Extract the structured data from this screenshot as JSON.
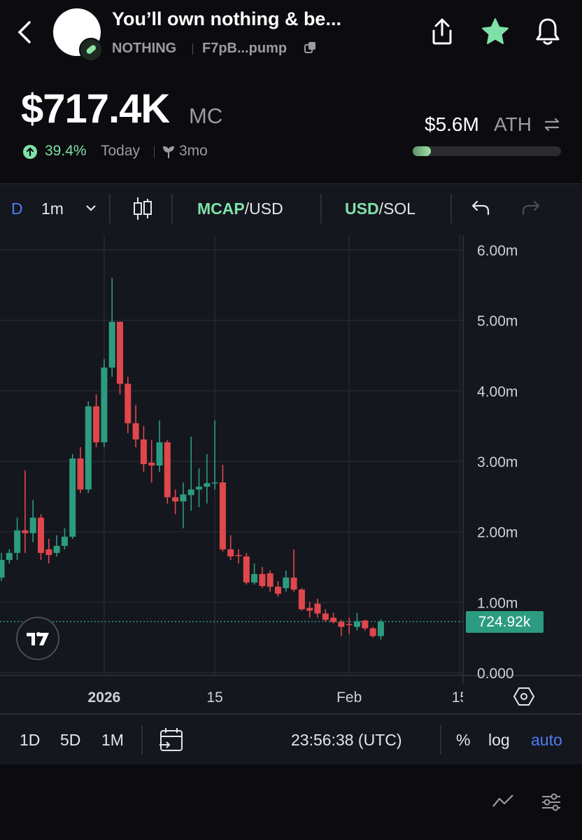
{
  "header": {
    "title": "You’ll own nothing & be...",
    "ticker": "NOTHING",
    "address": "F7pB...pump"
  },
  "stats": {
    "market_cap": "$717.4K",
    "market_cap_unit": "MC",
    "change": "39.4%",
    "change_period": "Today",
    "age": "3mo",
    "ath": "$5.6M",
    "ath_label": "ATH"
  },
  "toolbar": {
    "chart_style": "D",
    "interval": "1m",
    "pair_1_base": "MCAP",
    "pair_1_quote": "/USD",
    "pair_2_base": "USD",
    "pair_2_quote": "/SOL"
  },
  "chart_data": {
    "type": "candlestick",
    "up_color": "#2c9c80",
    "down_color": "#e0474c",
    "grid": true,
    "categories": [
      null,
      null,
      null,
      null,
      null,
      null,
      null,
      null,
      null,
      null,
      null,
      null,
      null,
      "2026",
      null,
      null,
      null,
      null,
      null,
      null,
      null,
      null,
      null,
      null,
      null,
      null,
      null,
      "15",
      null,
      null,
      null,
      null,
      null,
      null,
      null,
      null,
      null,
      null,
      null,
      null,
      null,
      null,
      null,
      null,
      "Feb",
      null,
      null,
      null,
      null,
      null,
      null,
      null,
      null,
      null,
      null,
      null,
      null,
      null,
      "15"
    ],
    "open": [
      1.35,
      1.6,
      1.7,
      2.02,
      1.98,
      2.2,
      1.75,
      1.7,
      1.8,
      1.93,
      3.04,
      2.6,
      3.78,
      3.27,
      4.33,
      4.98,
      4.1,
      3.54,
      3.31,
      2.98,
      2.94,
      3.27,
      2.49,
      2.43,
      2.52,
      2.6,
      2.64,
      2.69,
      2.7,
      1.75,
      1.67,
      1.65,
      1.28,
      1.4,
      1.41,
      1.22,
      1.2,
      1.35,
      1.18,
      0.92,
      0.98,
      0.84,
      0.78,
      0.72,
      0.69,
      0.65,
      0.74,
      0.63,
      0.52,
      null,
      null,
      null,
      null,
      null,
      null,
      null,
      null,
      null,
      null
    ],
    "high": [
      1.7,
      1.75,
      2.2,
      2.87,
      2.45,
      2.25,
      1.9,
      1.95,
      2.05,
      3.1,
      3.2,
      3.85,
      3.95,
      4.45,
      5.6,
      4.98,
      4.2,
      3.8,
      3.5,
      3.3,
      3.58,
      3.3,
      2.6,
      2.7,
      3.35,
      2.9,
      3.1,
      3.58,
      2.95,
      1.95,
      1.75,
      1.7,
      1.55,
      1.5,
      1.45,
      1.3,
      1.45,
      1.75,
      1.2,
      1.0,
      1.05,
      0.9,
      0.85,
      0.75,
      0.78,
      0.85,
      0.75,
      0.65,
      0.76,
      null,
      null,
      null,
      null,
      null,
      null,
      null,
      null,
      null,
      null
    ],
    "low": [
      1.3,
      1.55,
      1.6,
      1.7,
      1.85,
      1.6,
      1.55,
      1.65,
      1.75,
      1.9,
      2.55,
      2.55,
      3.2,
      3.2,
      4.2,
      3.95,
      3.4,
      3.2,
      2.85,
      2.7,
      2.85,
      2.4,
      2.25,
      2.05,
      2.3,
      2.35,
      2.4,
      2.6,
      1.72,
      1.6,
      1.55,
      1.25,
      1.25,
      1.2,
      1.15,
      1.08,
      1.15,
      1.15,
      0.88,
      0.78,
      0.78,
      0.72,
      0.7,
      0.52,
      0.55,
      0.6,
      0.6,
      0.5,
      0.47,
      null,
      null,
      null,
      null,
      null,
      null,
      null,
      null,
      null,
      null
    ],
    "close": [
      1.6,
      1.7,
      2.02,
      1.98,
      2.2,
      1.7,
      1.67,
      1.8,
      1.93,
      3.04,
      2.6,
      3.78,
      3.27,
      4.33,
      4.98,
      4.1,
      3.54,
      3.31,
      2.96,
      2.94,
      3.27,
      2.49,
      2.43,
      2.53,
      2.6,
      2.64,
      2.69,
      2.7,
      1.75,
      1.65,
      1.66,
      1.28,
      1.4,
      1.23,
      1.22,
      1.12,
      1.35,
      1.18,
      0.9,
      0.88,
      0.84,
      0.75,
      0.72,
      0.65,
      0.68,
      0.73,
      0.63,
      0.52,
      0.72492,
      null,
      null,
      null,
      null,
      null,
      null,
      null,
      null,
      null,
      null
    ],
    "ylim": [
      0,
      6
    ],
    "yticks": [
      {
        "value": 0,
        "label": "0.000"
      },
      {
        "value": 1,
        "label": "1.00m"
      },
      {
        "value": 2,
        "label": "2.00m"
      },
      {
        "value": 3,
        "label": "3.00m"
      },
      {
        "value": 4,
        "label": "4.00m"
      },
      {
        "value": 5,
        "label": "5.00m"
      },
      {
        "value": 6,
        "label": "6.00m"
      }
    ],
    "last_price": {
      "value": 0.72492,
      "label": "724.92k"
    }
  },
  "footer": {
    "range_1": "1D",
    "range_2": "5D",
    "range_3": "1M",
    "clock": "23:56:38 (UTC)",
    "percent": "%",
    "log": "log",
    "auto": "auto"
  }
}
